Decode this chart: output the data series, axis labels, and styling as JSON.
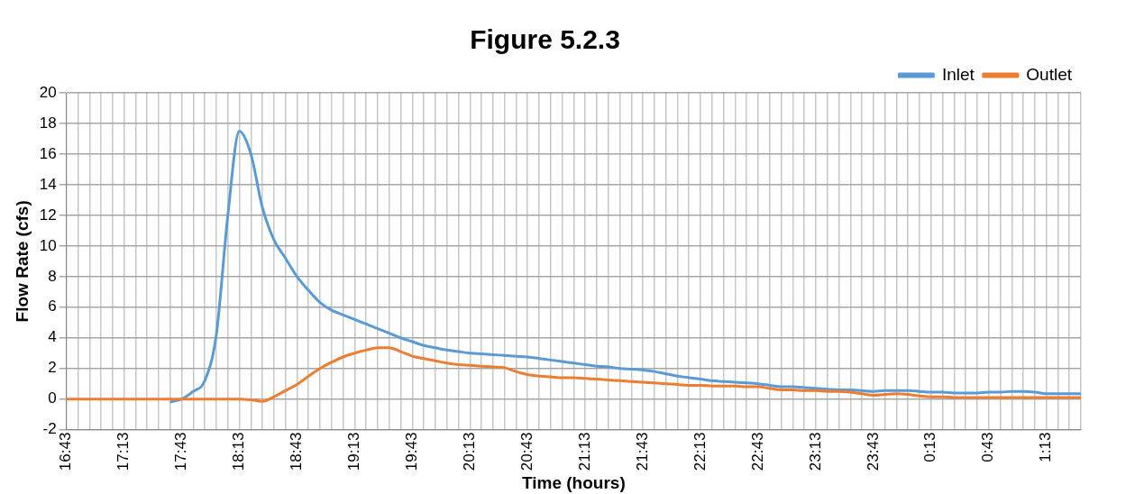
{
  "chart_data": {
    "type": "line",
    "title": "Figure 5.2.3",
    "xlabel": "Time (hours)",
    "ylabel": "Flow Rate (cfs)",
    "categories": [
      "16:43",
      null,
      null,
      null,
      null,
      "17:13",
      null,
      null,
      null,
      null,
      "17:43",
      null,
      null,
      null,
      null,
      "18:13",
      null,
      null,
      null,
      null,
      "18:43",
      null,
      null,
      null,
      null,
      "19:13",
      null,
      null,
      null,
      null,
      "19:43",
      null,
      null,
      null,
      null,
      "20:13",
      null,
      null,
      null,
      null,
      "20:43",
      null,
      null,
      null,
      null,
      "21:13",
      null,
      null,
      null,
      null,
      "21:43",
      null,
      null,
      null,
      null,
      "22:13",
      null,
      null,
      null,
      null,
      "22:43",
      null,
      null,
      null,
      null,
      "23:13",
      null,
      null,
      null,
      null,
      "23:43",
      null,
      null,
      null,
      null,
      "0:13",
      null,
      null,
      null,
      null,
      "0:43",
      null,
      null,
      null,
      null,
      "1:13",
      null,
      null,
      null
    ],
    "ylim": [
      -2,
      20
    ],
    "yticks": [
      -2,
      0,
      2,
      4,
      6,
      8,
      10,
      12,
      14,
      16,
      18,
      20
    ],
    "grid": true,
    "legend": "top right",
    "series": [
      {
        "name": "Inlet",
        "color": "#5b9bd5",
        "values": [
          null,
          null,
          null,
          null,
          null,
          null,
          null,
          null,
          null,
          -0.2,
          0,
          0.5,
          1.2,
          4.2,
          12,
          17.5,
          16,
          12.5,
          10.4,
          9.2,
          8,
          7.1,
          6.3,
          5.8,
          5.5,
          5.2,
          4.9,
          4.6,
          4.3,
          4,
          3.75,
          3.5,
          3.35,
          3.2,
          3.1,
          3,
          2.95,
          2.9,
          2.85,
          2.8,
          2.75,
          2.65,
          2.55,
          2.45,
          2.35,
          2.25,
          2.15,
          2.1,
          2,
          1.95,
          1.9,
          1.8,
          1.65,
          1.5,
          1.4,
          1.3,
          1.2,
          1.15,
          1.1,
          1.05,
          1,
          0.9,
          0.8,
          0.8,
          0.75,
          0.7,
          0.65,
          0.6,
          0.6,
          0.55,
          0.5,
          0.55,
          0.55,
          0.55,
          0.5,
          0.45,
          0.45,
          0.4,
          0.4,
          0.4,
          0.45,
          0.45,
          0.5,
          0.5,
          0.45,
          0.35,
          0.35,
          0.35,
          0.35
        ]
      },
      {
        "name": "Outlet",
        "color": "#ed7d31",
        "values": [
          0,
          0,
          0,
          0,
          0,
          0,
          0,
          0,
          0,
          0,
          0,
          0,
          0,
          0,
          0,
          0,
          -0.05,
          -0.15,
          0.15,
          0.55,
          0.95,
          1.5,
          2,
          2.4,
          2.75,
          3,
          3.2,
          3.35,
          3.35,
          3.1,
          2.8,
          2.65,
          2.5,
          2.35,
          2.25,
          2.2,
          2.15,
          2.1,
          2.05,
          1.8,
          1.6,
          1.5,
          1.45,
          1.4,
          1.4,
          1.35,
          1.3,
          1.25,
          1.2,
          1.15,
          1.1,
          1.05,
          1,
          0.95,
          0.9,
          0.9,
          0.85,
          0.85,
          0.85,
          0.8,
          0.8,
          0.7,
          0.6,
          0.6,
          0.55,
          0.55,
          0.5,
          0.5,
          0.45,
          0.35,
          0.25,
          0.3,
          0.35,
          0.3,
          0.2,
          0.15,
          0.15,
          0.1,
          0.1,
          0.1,
          0.1,
          0.1,
          0.1,
          0.1,
          0.1,
          0.1,
          0.1,
          0.1,
          0.1
        ]
      }
    ]
  }
}
